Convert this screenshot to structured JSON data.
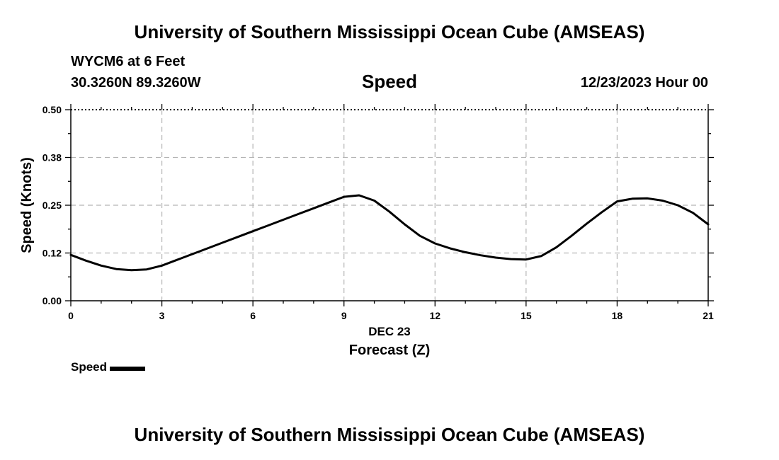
{
  "header": {
    "title": "University of Southern Mississippi Ocean Cube (AMSEAS)",
    "station": "WYCM6 at 6 Feet",
    "coords": "30.3260N  89.3260W",
    "chart_title": "Speed",
    "datetime": "12/23/2023 Hour 00"
  },
  "footer": {
    "title": "University of Southern Mississippi Ocean Cube (AMSEAS)"
  },
  "legend": {
    "label": "Speed",
    "color": "#000000"
  },
  "chart_data": {
    "type": "line",
    "title": "Speed",
    "xlabel": "Forecast (Z)",
    "xlabel_date": "DEC 23",
    "ylabel": "Speed (Knots)",
    "xlim": [
      0,
      21
    ],
    "ylim": [
      0,
      0.5
    ],
    "x_ticks": [
      0,
      3,
      6,
      9,
      12,
      15,
      18,
      21
    ],
    "x_tick_labels": [
      "0",
      "3",
      "6",
      "9",
      "12",
      "15",
      "18",
      "21"
    ],
    "y_ticks": [
      0,
      0.125,
      0.25,
      0.375,
      0.5
    ],
    "y_tick_labels": [
      "0.00",
      "0.12",
      "0.25",
      "0.38",
      "0.50"
    ],
    "grid": true,
    "legend_position": "bottom-left",
    "series": [
      {
        "name": "Speed",
        "color": "#000000",
        "x": [
          0,
          0.5,
          1,
          1.5,
          2,
          2.5,
          3,
          3.5,
          4,
          4.5,
          5,
          5.5,
          6,
          6.5,
          7,
          7.5,
          8,
          8.5,
          9,
          9.5,
          10,
          10.5,
          11,
          11.5,
          12,
          12.5,
          13,
          13.5,
          14,
          14.5,
          15,
          15.5,
          16,
          16.5,
          17,
          17.5,
          18,
          18.5,
          19,
          19.5,
          20,
          20.5,
          21
        ],
        "y": [
          0.12,
          0.105,
          0.092,
          0.083,
          0.08,
          0.082,
          0.092,
          0.107,
          0.122,
          0.137,
          0.152,
          0.167,
          0.182,
          0.197,
          0.212,
          0.227,
          0.242,
          0.257,
          0.272,
          0.276,
          0.262,
          0.233,
          0.2,
          0.17,
          0.15,
          0.137,
          0.127,
          0.119,
          0.113,
          0.109,
          0.108,
          0.117,
          0.14,
          0.17,
          0.202,
          0.232,
          0.26,
          0.267,
          0.268,
          0.262,
          0.25,
          0.23,
          0.2
        ]
      }
    ]
  }
}
